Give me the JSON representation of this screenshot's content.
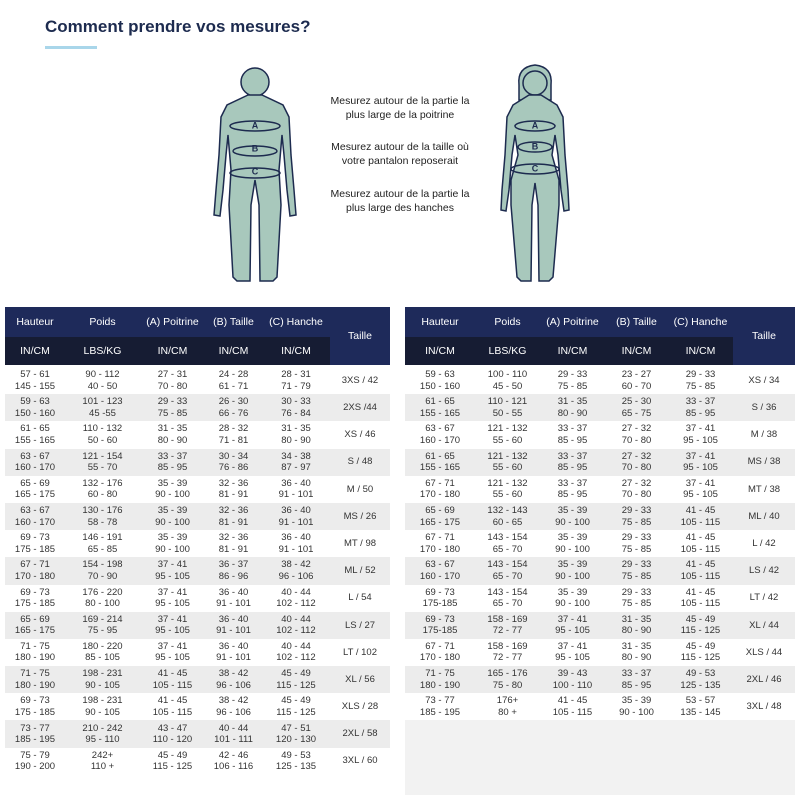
{
  "header": {
    "title": "Comment prendre vos mesures?"
  },
  "figure_labels": [
    "A",
    "B",
    "C"
  ],
  "instructions": [
    [
      "Mesurez autour de la partie la",
      "plus large de la poitrine"
    ],
    [
      "Mesurez autour de la taille où",
      "votre pantalon reposerait"
    ],
    [
      "Mesurez autour de la partie la",
      "plus large des hanches"
    ]
  ],
  "tables": [
    {
      "columns": [
        "Hauteur",
        "Poids",
        "(A) Poitrine",
        "(B) Taille",
        "(C) Hanche",
        "Taille"
      ],
      "units": [
        "IN/CM",
        "LBS/KG",
        "IN/CM",
        "IN/CM",
        "IN/CM"
      ],
      "rows": [
        [
          [
            "57 - 61",
            "145 - 155"
          ],
          [
            "90 - 112",
            "40 - 50"
          ],
          [
            "27 - 31",
            "70 - 80"
          ],
          [
            "24 - 28",
            "61 - 71"
          ],
          [
            "28 - 31",
            "71 - 79"
          ],
          "3XS / 42"
        ],
        [
          [
            "59 - 63",
            "150 - 160"
          ],
          [
            "101 - 123",
            "45 -55"
          ],
          [
            "29 - 33",
            "75 - 85"
          ],
          [
            "26 - 30",
            "66 - 76"
          ],
          [
            "30 - 33",
            "76 - 84"
          ],
          "2XS /44"
        ],
        [
          [
            "61 - 65",
            "155 - 165"
          ],
          [
            "110 - 132",
            "50 - 60"
          ],
          [
            "31 - 35",
            "80 - 90"
          ],
          [
            "28 - 32",
            "71 - 81"
          ],
          [
            "31 - 35",
            "80 - 90"
          ],
          "XS / 46"
        ],
        [
          [
            "63 - 67",
            "160 - 170"
          ],
          [
            "121 - 154",
            "55 - 70"
          ],
          [
            "33 - 37",
            "85 - 95"
          ],
          [
            "30 - 34",
            "76 - 86"
          ],
          [
            "34 - 38",
            "87 - 97"
          ],
          "S / 48"
        ],
        [
          [
            "65 - 69",
            "165 - 175"
          ],
          [
            "132 - 176",
            "60 - 80"
          ],
          [
            "35 - 39",
            "90 - 100"
          ],
          [
            "32 - 36",
            "81 - 91"
          ],
          [
            "36 - 40",
            "91 - 101"
          ],
          "M / 50"
        ],
        [
          [
            "63 - 67",
            "160 - 170"
          ],
          [
            "130 - 176",
            "58 - 78"
          ],
          [
            "35 - 39",
            "90 - 100"
          ],
          [
            "32 - 36",
            "81 - 91"
          ],
          [
            "36 - 40",
            "91 - 101"
          ],
          "MS / 26"
        ],
        [
          [
            "69 - 73",
            "175 - 185"
          ],
          [
            "146 - 191",
            "65 - 85"
          ],
          [
            "35 - 39",
            "90 - 100"
          ],
          [
            "32 - 36",
            "81 - 91"
          ],
          [
            "36 - 40",
            "91 - 101"
          ],
          "MT / 98"
        ],
        [
          [
            "67 - 71",
            "170 - 180"
          ],
          [
            "154 - 198",
            "70 - 90"
          ],
          [
            "37 - 41",
            "95 - 105"
          ],
          [
            "36 - 37",
            "86 - 96"
          ],
          [
            "38 - 42",
            "96 - 106"
          ],
          "ML / 52"
        ],
        [
          [
            "69 - 73",
            "175 - 185"
          ],
          [
            "176 - 220",
            "80 - 100"
          ],
          [
            "37 - 41",
            "95 - 105"
          ],
          [
            "36 - 40",
            "91 - 101"
          ],
          [
            "40 - 44",
            "102 - 112"
          ],
          "L / 54"
        ],
        [
          [
            "65 - 69",
            "165 - 175"
          ],
          [
            "169 - 214",
            "75 - 95"
          ],
          [
            "37 - 41",
            "95 - 105"
          ],
          [
            "36 - 40",
            "91 - 101"
          ],
          [
            "40 - 44",
            "102 - 112"
          ],
          "LS / 27"
        ],
        [
          [
            "71 - 75",
            "180 - 190"
          ],
          [
            "180 - 220",
            "85 - 105"
          ],
          [
            "37 - 41",
            "95 - 105"
          ],
          [
            "36 - 40",
            "91 - 101"
          ],
          [
            "40 - 44",
            "102 - 112"
          ],
          "LT / 102"
        ],
        [
          [
            "71 - 75",
            "180 - 190"
          ],
          [
            "198 - 231",
            "90 - 105"
          ],
          [
            "41 - 45",
            "105 - 115"
          ],
          [
            "38 - 42",
            "96 - 106"
          ],
          [
            "45 - 49",
            "115 - 125"
          ],
          "XL / 56"
        ],
        [
          [
            "69 - 73",
            "175 - 185"
          ],
          [
            "198 - 231",
            "90 - 105"
          ],
          [
            "41 - 45",
            "105 - 115"
          ],
          [
            "38 - 42",
            "96 - 106"
          ],
          [
            "45 - 49",
            "115 - 125"
          ],
          "XLS / 28"
        ],
        [
          [
            "73 - 77",
            "185 - 195"
          ],
          [
            "210 - 242",
            "95 - 110"
          ],
          [
            "43 - 47",
            "110 - 120"
          ],
          [
            "40 - 44",
            "101 - 111"
          ],
          [
            "47 - 51",
            "120 - 130"
          ],
          "2XL / 58"
        ],
        [
          [
            "75 - 79",
            "190 - 200"
          ],
          [
            "242+",
            "110 +"
          ],
          [
            "45 - 49",
            "115 - 125"
          ],
          [
            "42 - 46",
            "106 - 116"
          ],
          [
            "49 - 53",
            "125 - 135"
          ],
          "3XL / 60"
        ]
      ]
    },
    {
      "columns": [
        "Hauteur",
        "Poids",
        "(A) Poitrine",
        "(B) Taille",
        "(C) Hanche",
        "Taille"
      ],
      "units": [
        "IN/CM",
        "LBS/KG",
        "IN/CM",
        "IN/CM",
        "IN/CM"
      ],
      "rows": [
        [
          [
            "59 - 63",
            "150 - 160"
          ],
          [
            "100 - 110",
            "45 - 50"
          ],
          [
            "29 - 33",
            "75 - 85"
          ],
          [
            "23 - 27",
            "60 - 70"
          ],
          [
            "29 - 33",
            "75 - 85"
          ],
          "XS / 34"
        ],
        [
          [
            "61 - 65",
            "155 - 165"
          ],
          [
            "110 - 121",
            "50 - 55"
          ],
          [
            "31 - 35",
            "80 - 90"
          ],
          [
            "25 - 30",
            "65 - 75"
          ],
          [
            "33 - 37",
            "85 - 95"
          ],
          "S / 36"
        ],
        [
          [
            "63 - 67",
            "160 - 170"
          ],
          [
            "121 - 132",
            "55 - 60"
          ],
          [
            "33 - 37",
            "85 - 95"
          ],
          [
            "27 - 32",
            "70 - 80"
          ],
          [
            "37 - 41",
            "95 - 105"
          ],
          "M / 38"
        ],
        [
          [
            "61 - 65",
            "155 - 165"
          ],
          [
            "121 - 132",
            "55 - 60"
          ],
          [
            "33 - 37",
            "85 - 95"
          ],
          [
            "27 - 32",
            "70 - 80"
          ],
          [
            "37 - 41",
            "95 - 105"
          ],
          "MS / 38"
        ],
        [
          [
            "67 - 71",
            "170 - 180"
          ],
          [
            "121 - 132",
            "55 - 60"
          ],
          [
            "33 - 37",
            "85 - 95"
          ],
          [
            "27 - 32",
            "70 - 80"
          ],
          [
            "37 - 41",
            "95 - 105"
          ],
          "MT / 38"
        ],
        [
          [
            "65 - 69",
            "165 - 175"
          ],
          [
            "132 - 143",
            "60 - 65"
          ],
          [
            "35 - 39",
            "90 - 100"
          ],
          [
            "29 - 33",
            "75 - 85"
          ],
          [
            "41 - 45",
            "105 - 115"
          ],
          "ML / 40"
        ],
        [
          [
            "67 - 71",
            "170 - 180"
          ],
          [
            "143 - 154",
            "65 - 70"
          ],
          [
            "35 - 39",
            "90 - 100"
          ],
          [
            "29 - 33",
            "75 - 85"
          ],
          [
            "41 - 45",
            "105 - 115"
          ],
          "L / 42"
        ],
        [
          [
            "63 - 67",
            "160 - 170"
          ],
          [
            "143 - 154",
            "65 - 70"
          ],
          [
            "35 - 39",
            "90 - 100"
          ],
          [
            "29 - 33",
            "75 - 85"
          ],
          [
            "41 - 45",
            "105 - 115"
          ],
          "LS / 42"
        ],
        [
          [
            "69 - 73",
            "175-185"
          ],
          [
            "143 - 154",
            "65 - 70"
          ],
          [
            "35 - 39",
            "90 - 100"
          ],
          [
            "29 - 33",
            "75 - 85"
          ],
          [
            "41 - 45",
            "105 - 115"
          ],
          "LT / 42"
        ],
        [
          [
            "69 - 73",
            "175-185"
          ],
          [
            "158 - 169",
            "72 - 77"
          ],
          [
            "37 - 41",
            "95 - 105"
          ],
          [
            "31 - 35",
            "80 - 90"
          ],
          [
            "45 - 49",
            "115 - 125"
          ],
          "XL / 44"
        ],
        [
          [
            "67 - 71",
            "170 - 180"
          ],
          [
            "158 - 169",
            "72 - 77"
          ],
          [
            "37 - 41",
            "95 - 105"
          ],
          [
            "31 - 35",
            "80 - 90"
          ],
          [
            "45 - 49",
            "115 - 125"
          ],
          "XLS / 44"
        ],
        [
          [
            "71 - 75",
            "180 - 190"
          ],
          [
            "165 - 176",
            "75 - 80"
          ],
          [
            "39 - 43",
            "100 - 110"
          ],
          [
            "33 - 37",
            "85 - 95"
          ],
          [
            "49 - 53",
            "125 - 135"
          ],
          "2XL / 46"
        ],
        [
          [
            "73 - 77",
            "185 - 195"
          ],
          [
            "176+",
            "80 +"
          ],
          [
            "41 - 45",
            "105 - 115"
          ],
          [
            "35 - 39",
            "90 - 100"
          ],
          [
            "53 - 57",
            "135 - 145"
          ],
          "3XL / 48"
        ]
      ]
    }
  ]
}
